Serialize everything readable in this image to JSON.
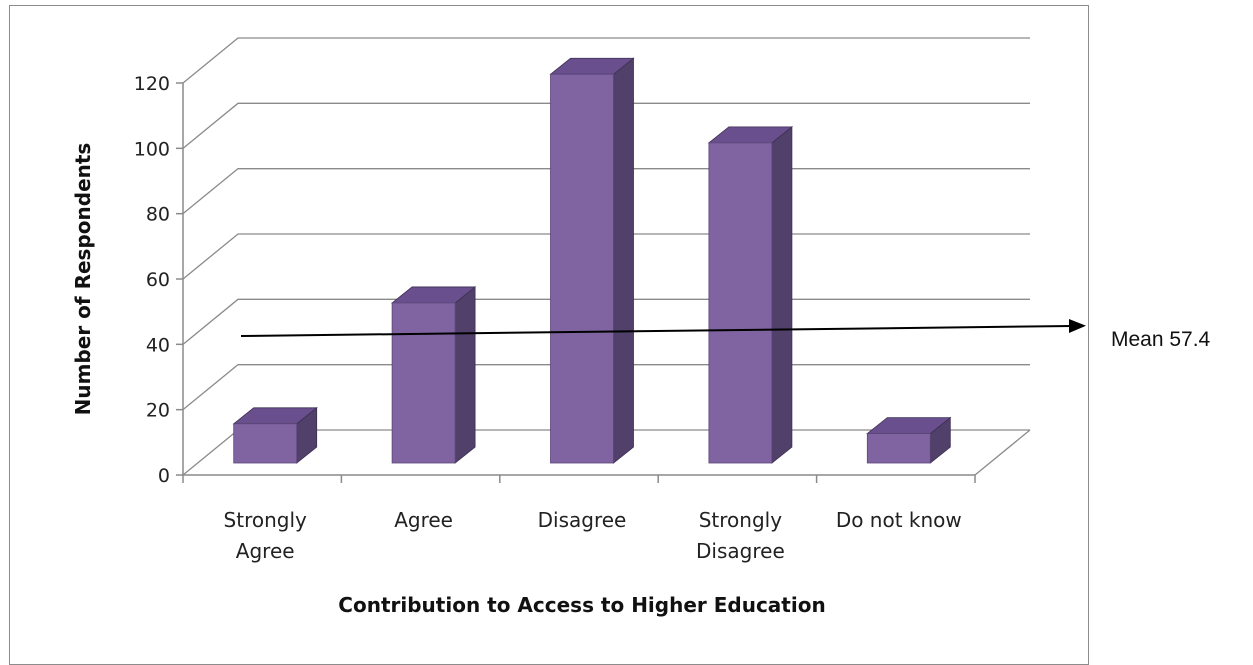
{
  "chart_data": {
    "type": "bar",
    "style": "3d-column",
    "categories": [
      [
        "Strongly",
        "Agree"
      ],
      [
        "Agree"
      ],
      [
        "Disagree"
      ],
      [
        "Strongly",
        "Disagree"
      ],
      [
        "Do not know"
      ]
    ],
    "values": [
      12,
      49,
      119,
      98,
      9
    ],
    "xlabel": "Contribution to  Access to Higher Education",
    "ylabel": "Number of Respondents",
    "ylim": [
      0,
      120
    ],
    "yticks": [
      0,
      20,
      40,
      60,
      80,
      100,
      120
    ],
    "grid": true,
    "legend": "none",
    "bar_color": "#8064a2",
    "bar_top_color": "#6a4f8e",
    "bar_side_color": "#50406a",
    "annotation": {
      "text": "Mean 57.4",
      "value": 57.4
    }
  }
}
